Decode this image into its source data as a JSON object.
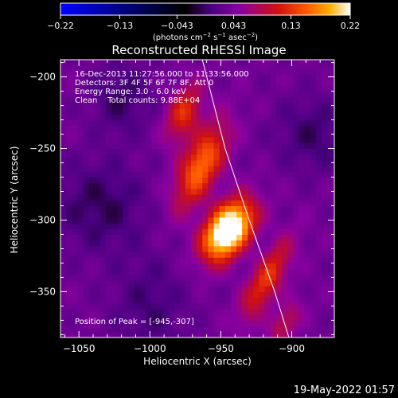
{
  "chart_data": {
    "type": "heatmap",
    "title": "Reconstructed RHESSI Image",
    "xlabel": "Heliocentric X (arcsec)",
    "ylabel": "Heliocentric Y (arcsec)",
    "xlim": [
      -1063,
      -870
    ],
    "ylim": [
      -382,
      -188
    ],
    "x_ticks": [
      -1050,
      -1000,
      -950,
      -900
    ],
    "y_ticks": [
      -200,
      -250,
      -300,
      -350
    ],
    "x_tick_labels": [
      "−1050",
      "−1000",
      "−950",
      "−900"
    ],
    "y_tick_labels": [
      "−200",
      "−250",
      "−300",
      "−350"
    ],
    "colorbar": {
      "range": [
        -0.22,
        0.22
      ],
      "tick_values": [
        -0.22,
        -0.13,
        -0.043,
        0.043,
        0.13,
        0.22
      ],
      "tick_labels": [
        "−0.22",
        "−0.13",
        "−0.043",
        "0.043",
        "0.13",
        "0.22"
      ],
      "unit_label": "(photons cm",
      "unit_exp1": "−2",
      "unit_mid": " s",
      "unit_exp2": "−1",
      "unit_mid2": " asec",
      "unit_exp3": "−2",
      "unit_end": ")",
      "colors": [
        "#0000ff",
        "#000000",
        "#4b0082",
        "#8a00a0",
        "#d01010",
        "#ff5a00",
        "#ffb000",
        "#ffffff"
      ]
    },
    "annotations": [
      "16-Dec-2013 11:27:56.000 to 11:33:56.000",
      "Detectors: 3F 4F 5F 6F 7F 8F, Att 0",
      "Energy Range: 3.0 - 6.0 keV",
      "Clean    Total counts: 9.88E+04"
    ],
    "peak_label": "Position of Peak = [-945,-307]",
    "peak": [
      -945,
      -307
    ],
    "limb_line": [
      [
        -963,
        -188
      ],
      [
        -947,
        -250
      ],
      [
        -930,
        -300
      ],
      [
        -912,
        -350
      ],
      [
        -902,
        -382
      ]
    ],
    "sources": [
      {
        "x": -945,
        "y": -307,
        "sx": 10,
        "sy": 16,
        "angle": 55,
        "amp": 0.24
      },
      {
        "x": -964,
        "y": -262,
        "sx": 9,
        "sy": 22,
        "angle": 63,
        "amp": 0.13
      },
      {
        "x": -976,
        "y": -225,
        "sx": 8,
        "sy": 15,
        "angle": 70,
        "amp": 0.09
      },
      {
        "x": -918,
        "y": -342,
        "sx": 7,
        "sy": 22,
        "angle": 60,
        "amp": 0.1
      },
      {
        "x": -905,
        "y": -372,
        "sx": 6,
        "sy": 12,
        "angle": 60,
        "amp": 0.06
      },
      {
        "x": -1035,
        "y": -290,
        "sx": 22,
        "sy": 22,
        "angle": 0,
        "amp": -0.04
      },
      {
        "x": -1020,
        "y": -215,
        "sx": 18,
        "sy": 14,
        "angle": 0,
        "amp": -0.035
      },
      {
        "x": -885,
        "y": -240,
        "sx": 18,
        "sy": 18,
        "angle": 0,
        "amp": -0.035
      },
      {
        "x": -1000,
        "y": -360,
        "sx": 25,
        "sy": 18,
        "angle": 0,
        "amp": -0.03
      }
    ],
    "baseline": 0.035
  },
  "footer": {
    "date": "19-May-2022 01:57"
  }
}
